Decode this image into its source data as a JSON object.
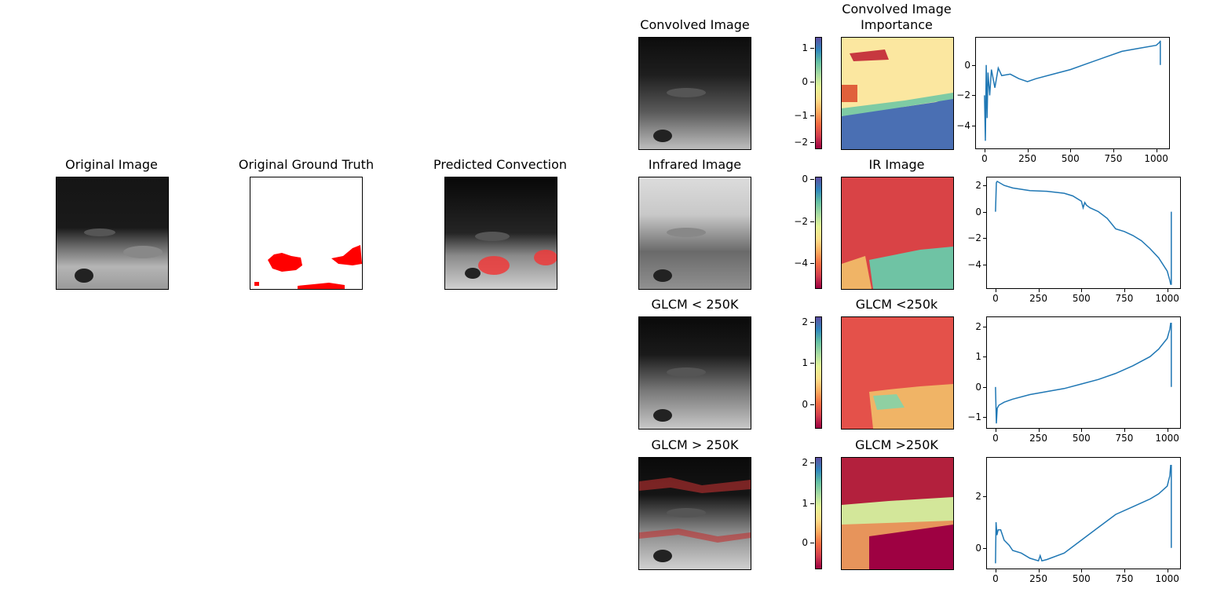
{
  "titles": {
    "original_image": "Original Image",
    "original_ground_truth": "Original Ground Truth",
    "predicted_convection": "Predicted Convection"
  },
  "rows": [
    {
      "image_title": "Convolved Image",
      "importance_title": "Convolved Image\nImportance",
      "colorbar_ticks": [
        "1",
        "0",
        "−1",
        "−2"
      ]
    },
    {
      "image_title": "Infrared Image",
      "importance_title": "IR Image",
      "colorbar_ticks": [
        "0",
        "−2",
        "−4"
      ]
    },
    {
      "image_title": "GLCM < 250K",
      "importance_title": "GLCM <250k",
      "colorbar_ticks": [
        "2",
        "1",
        "0"
      ]
    },
    {
      "image_title": "GLCM > 250K",
      "importance_title": "GLCM >250K",
      "colorbar_ticks": [
        "2",
        "1",
        "0"
      ]
    }
  ],
  "colors": {
    "line": "#1f77b4",
    "truth": "#ff0000"
  },
  "chart_data": [
    {
      "type": "line",
      "name": "row1",
      "x_ticks": [
        0,
        250,
        500,
        750,
        1000
      ],
      "y_ticks": [
        0,
        -2,
        -4
      ],
      "xlim": [
        -50,
        1075
      ],
      "ylim": [
        -5.5,
        1.8
      ],
      "x": [
        0,
        5,
        10,
        15,
        20,
        30,
        40,
        60,
        80,
        100,
        150,
        200,
        250,
        300,
        400,
        500,
        600,
        700,
        800,
        900,
        1000,
        1020,
        1024,
        1024
      ],
      "y": [
        -2.0,
        -5.0,
        0.0,
        -3.5,
        -0.5,
        -2.0,
        -0.3,
        -1.5,
        -0.2,
        -0.7,
        -0.6,
        -0.9,
        -1.1,
        -0.9,
        -0.6,
        -0.3,
        0.1,
        0.5,
        0.9,
        1.1,
        1.3,
        1.5,
        1.6,
        0.0
      ]
    },
    {
      "type": "line",
      "name": "row2",
      "x_ticks": [
        0,
        250,
        500,
        750,
        1000
      ],
      "y_ticks": [
        2,
        0,
        -2,
        -4
      ],
      "xlim": [
        -50,
        1075
      ],
      "ylim": [
        -5.8,
        2.6
      ],
      "x": [
        0,
        5,
        10,
        50,
        100,
        200,
        300,
        400,
        450,
        500,
        510,
        520,
        530,
        550,
        600,
        650,
        700,
        750,
        800,
        850,
        900,
        950,
        1000,
        1015,
        1020,
        1024,
        1024
      ],
      "y": [
        0.0,
        2.2,
        2.3,
        2.0,
        1.8,
        1.6,
        1.55,
        1.4,
        1.2,
        0.8,
        0.3,
        0.7,
        0.5,
        0.3,
        0.0,
        -0.5,
        -1.3,
        -1.5,
        -1.8,
        -2.2,
        -2.8,
        -3.5,
        -4.5,
        -5.2,
        -5.5,
        -5.5,
        0.0
      ]
    },
    {
      "type": "line",
      "name": "row3",
      "x_ticks": [
        0,
        250,
        500,
        750,
        1000
      ],
      "y_ticks": [
        2,
        1,
        0,
        -1
      ],
      "xlim": [
        -50,
        1075
      ],
      "ylim": [
        -1.35,
        2.3
      ],
      "x": [
        0,
        5,
        10,
        20,
        50,
        100,
        200,
        300,
        400,
        500,
        600,
        700,
        800,
        900,
        950,
        1000,
        1015,
        1020,
        1024,
        1024
      ],
      "y": [
        0.0,
        -1.2,
        -0.7,
        -0.6,
        -0.5,
        -0.4,
        -0.25,
        -0.15,
        -0.05,
        0.1,
        0.25,
        0.45,
        0.7,
        1.0,
        1.25,
        1.6,
        1.9,
        2.1,
        2.1,
        0.0
      ]
    },
    {
      "type": "line",
      "name": "row4",
      "x_ticks": [
        0,
        250,
        500,
        750,
        1000
      ],
      "y_ticks": [
        2,
        0
      ],
      "xlim": [
        -50,
        1075
      ],
      "ylim": [
        -0.8,
        3.5
      ],
      "x": [
        0,
        3,
        8,
        15,
        30,
        50,
        80,
        100,
        150,
        200,
        250,
        260,
        270,
        300,
        400,
        500,
        600,
        700,
        800,
        900,
        950,
        1000,
        1015,
        1020,
        1024,
        1024
      ],
      "y": [
        -0.6,
        1.0,
        0.5,
        0.7,
        0.7,
        0.3,
        0.1,
        -0.1,
        -0.2,
        -0.4,
        -0.5,
        -0.3,
        -0.5,
        -0.45,
        -0.2,
        0.3,
        0.8,
        1.3,
        1.6,
        1.9,
        2.1,
        2.4,
        2.8,
        3.2,
        3.2,
        0.0
      ]
    }
  ]
}
